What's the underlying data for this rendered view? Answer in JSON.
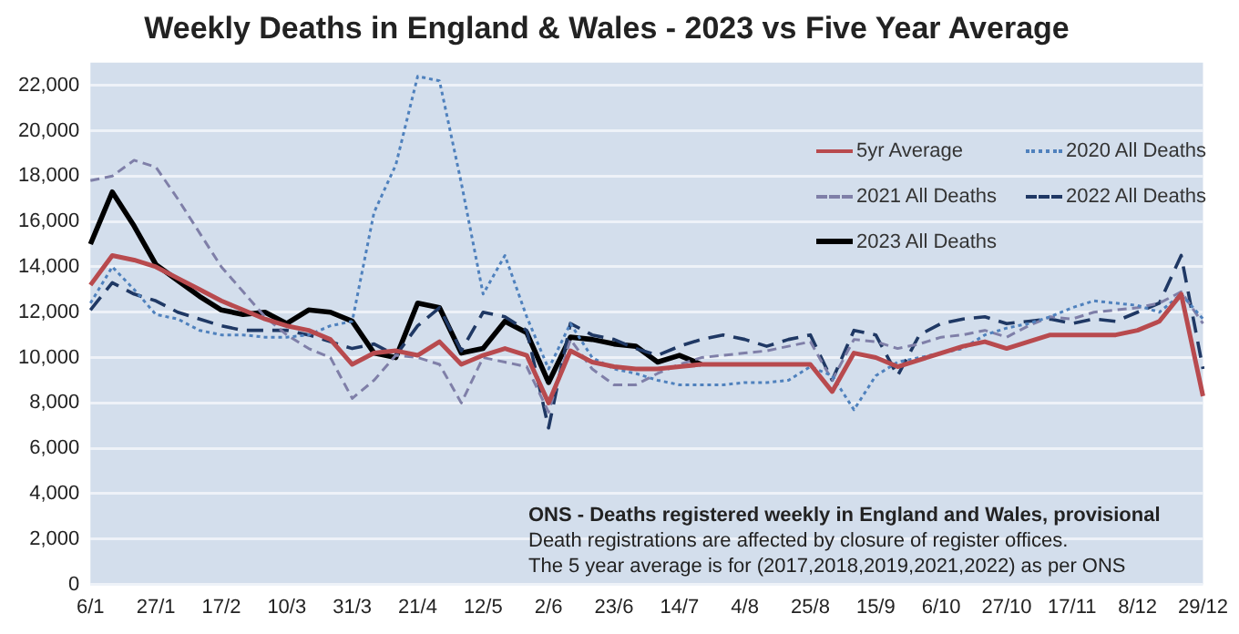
{
  "chart_data": {
    "type": "line",
    "title": "Weekly Deaths in England & Wales - 2023 vs Five Year Average",
    "categories": [
      "6/1",
      null,
      null,
      "27/1",
      null,
      null,
      "17/2",
      null,
      null,
      "10/3",
      null,
      null,
      "31/3",
      null,
      null,
      "21/4",
      null,
      null,
      "12/5",
      null,
      null,
      "2/6",
      null,
      null,
      "23/6",
      null,
      null,
      "14/7",
      null,
      null,
      "4/8",
      null,
      null,
      "25/8",
      null,
      null,
      "15/9",
      null,
      null,
      "6/10",
      null,
      null,
      "27/10",
      null,
      null,
      "17/11",
      null,
      null,
      "8/12",
      null,
      null,
      "29/12"
    ],
    "series": [
      {
        "name": "5yr Average",
        "color": "#b84a4e",
        "line_style": "solid",
        "values": [
          13200,
          14500,
          14300,
          14000,
          13500,
          13000,
          12500,
          12100,
          11700,
          11400,
          11200,
          10800,
          9700,
          10200,
          10300,
          10100,
          10700,
          9700,
          10100,
          10400,
          10100,
          8000,
          10300,
          9800,
          9600,
          9500,
          9500,
          9600,
          9700,
          9700,
          9700,
          9700,
          9700,
          9700,
          8500,
          10200,
          10000,
          9600,
          9900,
          10200,
          10500,
          10700,
          10400,
          10700,
          11000,
          11000,
          11000,
          11000,
          11200,
          11600,
          12800,
          8300
        ]
      },
      {
        "name": "2020 All Deaths",
        "color": "#4f81bd",
        "line_style": "dotted",
        "values": [
          12400,
          14000,
          13000,
          11900,
          11700,
          11200,
          11000,
          11000,
          10900,
          10900,
          11000,
          11400,
          11600,
          16400,
          18500,
          22400,
          22200,
          17700,
          12800,
          14500,
          11800,
          9500,
          11500,
          10000,
          9500,
          9300,
          9000,
          8800,
          8800,
          8800,
          8900,
          8900,
          9000,
          9600,
          9200,
          7700,
          9200,
          9800,
          10000,
          10200,
          10400,
          11000,
          11300,
          11500,
          11800,
          12200,
          12500,
          12400,
          12300,
          12000,
          12800,
          11700
        ]
      },
      {
        "name": "2021 All Deaths",
        "color": "#7f7fa8",
        "line_style": "dashed",
        "values": [
          17800,
          18000,
          18700,
          18400,
          17000,
          15500,
          14000,
          12900,
          11800,
          11000,
          10400,
          10000,
          8200,
          9000,
          10100,
          10000,
          9700,
          8000,
          10000,
          9800,
          9600,
          7600,
          10800,
          9500,
          8800,
          8800,
          9300,
          9700,
          10000,
          10100,
          10200,
          10300,
          10500,
          10700,
          9000,
          10800,
          10700,
          10400,
          10600,
          10900,
          11000,
          11200,
          10900,
          11400,
          11800,
          11700,
          12000,
          12100,
          12200,
          12400,
          12900,
          11500
        ]
      },
      {
        "name": "2022 All Deaths",
        "color": "#1f3864",
        "line_style": "longdash",
        "values": [
          12100,
          13300,
          12800,
          12500,
          12000,
          11700,
          11400,
          11200,
          11200,
          11200,
          11000,
          10700,
          10400,
          10600,
          10100,
          11400,
          12200,
          10300,
          12000,
          11800,
          11200,
          6900,
          11500,
          11000,
          10800,
          10400,
          10100,
          10500,
          10800,
          11000,
          10800,
          10500,
          10800,
          11000,
          9000,
          11200,
          11000,
          9200,
          11000,
          11500,
          11700,
          11800,
          11500,
          11600,
          11700,
          11500,
          11700,
          11600,
          12000,
          12400,
          14500,
          9500
        ]
      },
      {
        "name": "2023 All Deaths",
        "color": "#000000",
        "line_style": "solid",
        "values": [
          15000,
          17300,
          15800,
          14100,
          13400,
          12700,
          12100,
          11900,
          12000,
          11500,
          12100,
          12000,
          11600,
          10200,
          10000,
          12400,
          12200,
          10200,
          10400,
          11600,
          11100,
          8900,
          10900,
          10800,
          10600,
          10500,
          9800,
          10100,
          9700,
          null,
          null,
          null,
          null,
          null,
          null,
          null,
          null,
          null,
          null,
          null,
          null,
          null,
          null,
          null,
          null,
          null,
          null,
          null,
          null,
          null,
          null,
          null
        ]
      }
    ],
    "ylim": [
      0,
      23000
    ],
    "yticks": [
      {
        "value": 0,
        "label": "0"
      },
      {
        "value": 2000,
        "label": "2,000"
      },
      {
        "value": 4000,
        "label": "4,000"
      },
      {
        "value": 6000,
        "label": "6,000"
      },
      {
        "value": 8000,
        "label": "8,000"
      },
      {
        "value": 10000,
        "label": "10,000"
      },
      {
        "value": 12000,
        "label": "12,000"
      },
      {
        "value": 14000,
        "label": "14,000"
      },
      {
        "value": 16000,
        "label": "16,000"
      },
      {
        "value": 18000,
        "label": "18,000"
      },
      {
        "value": 20000,
        "label": "20,000"
      },
      {
        "value": 22000,
        "label": "22,000"
      }
    ],
    "grid": "y",
    "legend": "top right",
    "marker": "none",
    "annotations": [
      "ONS - Deaths registered weekly in England and Wales, provisional",
      "Death registrations are affected by closure of register offices.",
      "The 5 year average is for (2017,2018,2019,2021,2022) as per ONS"
    ]
  }
}
